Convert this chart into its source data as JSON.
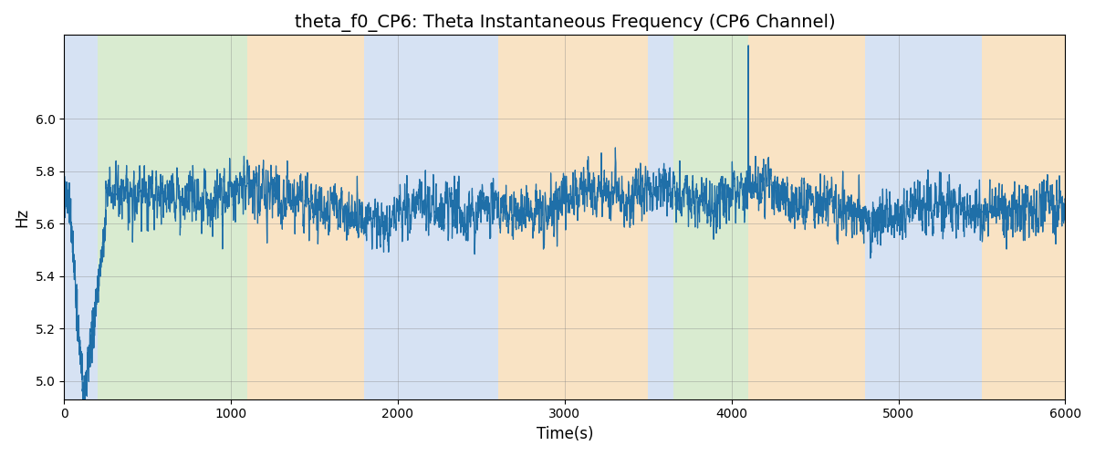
{
  "title": "theta_f0_CP6: Theta Instantaneous Frequency (CP6 Channel)",
  "xlabel": "Time(s)",
  "ylabel": "Hz",
  "xlim": [
    0,
    6000
  ],
  "ylim": [
    4.93,
    6.32
  ],
  "yticks": [
    5.0,
    5.2,
    5.4,
    5.6,
    5.8,
    6.0
  ],
  "xticks": [
    0,
    1000,
    2000,
    3000,
    4000,
    5000,
    6000
  ],
  "line_color": "#1f6fa8",
  "line_width": 0.9,
  "regions": [
    {
      "start": 0,
      "end": 200,
      "color": "#aec6e8",
      "alpha": 0.5
    },
    {
      "start": 200,
      "end": 1100,
      "color": "#b5d9a3",
      "alpha": 0.5
    },
    {
      "start": 1100,
      "end": 1800,
      "color": "#f5c98a",
      "alpha": 0.5
    },
    {
      "start": 1800,
      "end": 2600,
      "color": "#aec6e8",
      "alpha": 0.5
    },
    {
      "start": 2600,
      "end": 3500,
      "color": "#f5c98a",
      "alpha": 0.5
    },
    {
      "start": 3500,
      "end": 3650,
      "color": "#aec6e8",
      "alpha": 0.5
    },
    {
      "start": 3650,
      "end": 4100,
      "color": "#b5d9a3",
      "alpha": 0.5
    },
    {
      "start": 4100,
      "end": 4800,
      "color": "#f5c98a",
      "alpha": 0.5
    },
    {
      "start": 4800,
      "end": 5500,
      "color": "#aec6e8",
      "alpha": 0.5
    },
    {
      "start": 5500,
      "end": 6000,
      "color": "#f5c98a",
      "alpha": 0.5
    }
  ],
  "seed": 42,
  "n_points": 6000,
  "base_freq": 5.68,
  "noise_std": 0.1,
  "title_fontsize": 14,
  "label_fontsize": 12,
  "tick_fontsize": 10
}
